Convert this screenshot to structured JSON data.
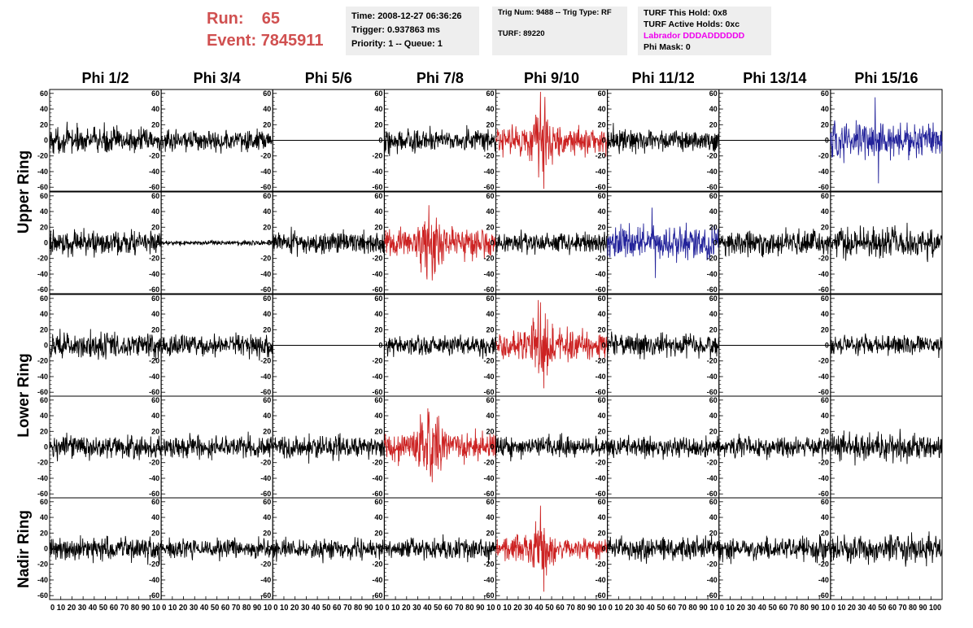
{
  "header": {
    "run_label": "Run:",
    "run_value": "65",
    "event_label": "Event:",
    "event_value": "7845911"
  },
  "info_time": {
    "time": "Time: 2008-12-27 06:36:26",
    "trigger": "Trigger: 0.937863 ms",
    "priority": "Priority: 1 -- Queue: 1"
  },
  "info_trig": {
    "trig": "Trig Num: 9488 -- Trig Type: RF",
    "turf": "TURF: 89220"
  },
  "info_turf": {
    "this_hold": "TURF This Hold: 0x8",
    "active_holds": "TURF Active Holds: 0xc",
    "labrador": "Labrador DDDADDDDDD",
    "phi_mask": "Phi Mask: 0"
  },
  "columns": [
    "Phi 1/2",
    "Phi 3/4",
    "Phi 5/6",
    "Phi 7/8",
    "Phi 9/10",
    "Phi 11/12",
    "Phi 13/14",
    "Phi 15/16"
  ],
  "row_labels": {
    "upper": "Upper Ring",
    "lower": "Lower Ring",
    "nadir": "Nadir Ring"
  },
  "colors": {
    "header_red": "#d05050",
    "trace_black": "#000000",
    "trace_red": "#cc2222",
    "trace_blue": "#22229a",
    "labrador_magenta": "#ee00ee",
    "info_bg": "#eeeeee"
  },
  "chart_data": {
    "type": "line",
    "xlim": [
      0,
      100
    ],
    "ylim": [
      -65,
      65
    ],
    "y_ticks": [
      "60",
      "40",
      "20",
      "0",
      "-20",
      "-40",
      "-60"
    ],
    "x_ticks": [
      "0",
      "10",
      "20",
      "30",
      "40",
      "50",
      "60",
      "70",
      "80",
      "90",
      "100"
    ],
    "x_tick_label_text": [
      "0 10 20 30 40 50 60 70 80 90 10",
      "0 10 20 30 40 50 60 70 80 90 10",
      "0 10 20 30 40 50 60 70 80 90 10",
      "0 10 20 30 40 50 60 70 80 90 10",
      "0 10 20 30 40 50 60 70 80 90 10",
      "0 10 20 30 40 50 60 70 80 90 10",
      "0 10 20 30 40 50 60 70 80 90 10",
      "0 10 20 30 40 50 60 70 80 90 100"
    ],
    "panels": [
      [
        {
          "type": "noise",
          "amp": 16,
          "color": "black"
        },
        {
          "type": "noise",
          "amp": 13,
          "color": "black"
        },
        {
          "type": "flat",
          "color": "black"
        },
        {
          "type": "noise",
          "amp": 14,
          "color": "black"
        },
        {
          "type": "burst",
          "amp": 18,
          "peak": 62,
          "color": "red"
        },
        {
          "type": "noise",
          "amp": 14,
          "color": "black"
        },
        {
          "type": "flat",
          "color": "black"
        },
        {
          "type": "noise",
          "amp": 22,
          "peak": 55,
          "color": "blue"
        }
      ],
      [
        {
          "type": "noise",
          "amp": 15,
          "color": "black"
        },
        {
          "type": "quiet",
          "amp": 3,
          "color": "black"
        },
        {
          "type": "noise",
          "amp": 14,
          "color": "black"
        },
        {
          "type": "burst",
          "amp": 18,
          "peak": 48,
          "color": "red"
        },
        {
          "type": "noise",
          "amp": 13,
          "color": "black"
        },
        {
          "type": "noise",
          "amp": 20,
          "peak": 45,
          "color": "blue"
        },
        {
          "type": "noise",
          "amp": 15,
          "color": "black"
        },
        {
          "type": "noise",
          "amp": 18,
          "color": "black"
        }
      ],
      [
        {
          "type": "noise",
          "amp": 16,
          "color": "black"
        },
        {
          "type": "noise",
          "amp": 13,
          "color": "black"
        },
        {
          "type": "flat",
          "color": "black"
        },
        {
          "type": "noise",
          "amp": 12,
          "color": "black"
        },
        {
          "type": "burst",
          "amp": 18,
          "peak": 55,
          "color": "red"
        },
        {
          "type": "noise",
          "amp": 15,
          "color": "black"
        },
        {
          "type": "flat",
          "color": "black"
        },
        {
          "type": "noise",
          "amp": 12,
          "color": "black"
        }
      ],
      [
        {
          "type": "noise",
          "amp": 14,
          "color": "black"
        },
        {
          "type": "noise",
          "amp": 14,
          "color": "black"
        },
        {
          "type": "noise",
          "amp": 14,
          "color": "black"
        },
        {
          "type": "burst",
          "amp": 18,
          "peak": 45,
          "color": "red"
        },
        {
          "type": "noise",
          "amp": 12,
          "color": "black"
        },
        {
          "type": "noise",
          "amp": 12,
          "color": "black"
        },
        {
          "type": "noise",
          "amp": 12,
          "color": "black"
        },
        {
          "type": "noise",
          "amp": 17,
          "color": "black"
        }
      ],
      [
        {
          "type": "noise",
          "amp": 15,
          "color": "black"
        },
        {
          "type": "noise",
          "amp": 12,
          "color": "black"
        },
        {
          "type": "noise",
          "amp": 12,
          "color": "black"
        },
        {
          "type": "noise",
          "amp": 13,
          "color": "black"
        },
        {
          "type": "burst",
          "amp": 14,
          "peak": 55,
          "color": "red"
        },
        {
          "type": "noise",
          "amp": 14,
          "color": "black"
        },
        {
          "type": "noise",
          "amp": 15,
          "color": "black"
        },
        {
          "type": "noise",
          "amp": 17,
          "color": "black"
        }
      ]
    ]
  }
}
